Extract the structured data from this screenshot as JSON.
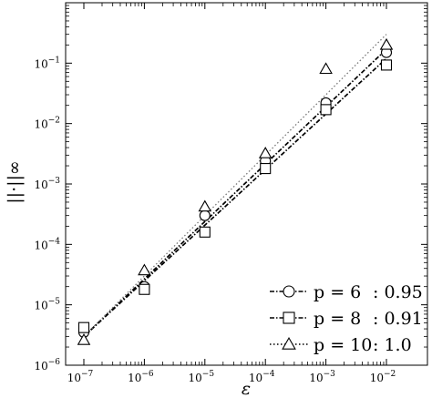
{
  "chart_data": {
    "type": "scatter",
    "scale": "log-log",
    "xlabel": "ε",
    "ylabel": "||·||∞",
    "xlim": [
      1e-07,
      0.01
    ],
    "ylim": [
      1e-06,
      1
    ],
    "x_ticks": [
      {
        "base": "10",
        "exp": "−7",
        "value": 1e-07
      },
      {
        "base": "10",
        "exp": "−6",
        "value": 1e-06
      },
      {
        "base": "10",
        "exp": "−5",
        "value": 1e-05
      },
      {
        "base": "10",
        "exp": "−4",
        "value": 0.0001
      },
      {
        "base": "10",
        "exp": "−3",
        "value": 0.001
      },
      {
        "base": "10",
        "exp": "−2",
        "value": 0.01
      }
    ],
    "y_ticks": [
      {
        "base": "10",
        "exp": "−6",
        "value": 1e-06
      },
      {
        "base": "10",
        "exp": "−5",
        "value": 1e-05
      },
      {
        "base": "10",
        "exp": "−4",
        "value": 0.0001
      },
      {
        "base": "10",
        "exp": "−3",
        "value": 0.001
      },
      {
        "base": "10",
        "exp": "−2",
        "value": 0.01
      },
      {
        "base": "10",
        "exp": "−1",
        "value": 0.1
      }
    ],
    "grid": false,
    "legend_position": "bottom-right",
    "series": [
      {
        "name": "p = 6   : 0.95",
        "legend_p": "p = 6",
        "legend_rate": ": 0.95",
        "marker": "circle",
        "linestyle": "dashdot",
        "x": [
          1e-07,
          1e-06,
          1e-05,
          0.0001,
          0.001,
          0.01
        ],
        "y": [
          3.5e-06,
          2e-05,
          0.0003,
          0.0024,
          0.022,
          0.15
        ],
        "fit": {
          "x": [
            1e-07,
            0.01
          ],
          "y": [
            3e-06,
            0.17
          ]
        }
      },
      {
        "name": "p = 8   : 0.91",
        "legend_p": "p = 8",
        "legend_rate": ": 0.91",
        "marker": "square",
        "linestyle": "dashdot",
        "x": [
          1e-07,
          1e-06,
          1e-05,
          0.0001,
          0.001,
          0.01
        ],
        "y": [
          4.2e-06,
          1.8e-05,
          0.00016,
          0.0018,
          0.017,
          0.093
        ],
        "fit": {
          "x": [
            1e-07,
            0.01
          ],
          "y": [
            3e-06,
            0.12
          ]
        }
      },
      {
        "name": "p = 10 : 1.0",
        "legend_p": "p = 10",
        "legend_rate": ": 1.0",
        "marker": "triangle",
        "linestyle": "dotted",
        "x": [
          1e-07,
          1e-06,
          1e-05,
          0.0001,
          0.001,
          0.01
        ],
        "y": [
          2.6e-06,
          3.7e-05,
          0.00042,
          0.0032,
          0.08,
          0.2
        ],
        "fit": {
          "x": [
            1e-07,
            0.01
          ],
          "y": [
            3e-06,
            0.3
          ]
        }
      }
    ]
  }
}
